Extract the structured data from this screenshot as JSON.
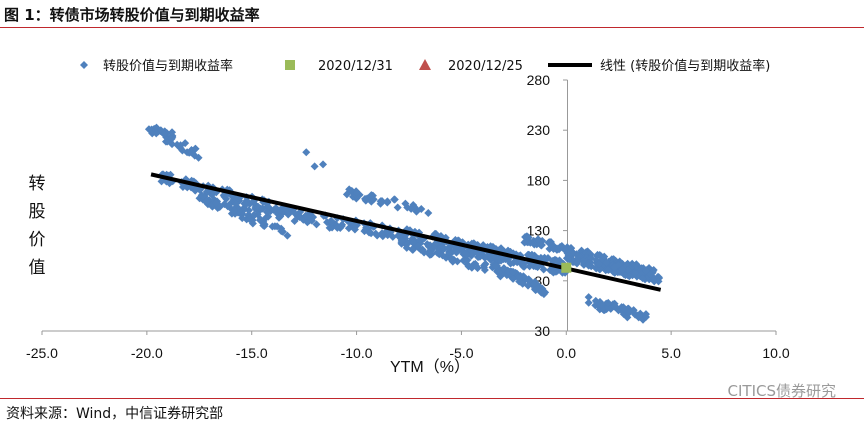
{
  "title": "图 1：转债市场转股价值与到期收益率",
  "source": "资料来源：Wind，中信证券研究部",
  "watermark": "CITICS债券研究",
  "colors": {
    "scatter": "#4f81bd",
    "point_2020_12_31": "#9bbb59",
    "point_2020_12_25": "#c0504d",
    "trend": "#000000",
    "rule": "#c0282d"
  },
  "chart_data": {
    "type": "scatter",
    "xlabel": "YTM（%）",
    "ylabel": "转股价值",
    "xlim": [
      -25,
      10
    ],
    "ylim": [
      30,
      280
    ],
    "x_ticks": [
      "-25.0",
      "-20.0",
      "-15.0",
      "-10.0",
      "-5.0",
      "0.0",
      "5.0",
      "10.0"
    ],
    "y_ticks": [
      "30",
      "80",
      "130",
      "180",
      "230",
      "280"
    ],
    "legend_position": "top",
    "legend": [
      {
        "label": "转股价值与到期收益率",
        "marker": "diamond"
      },
      {
        "label": "2020/12/31",
        "marker": "square"
      },
      {
        "label": "2020/12/25",
        "marker": "triangle"
      },
      {
        "label": "线性 (转股价值与到期收益率)",
        "marker": "line"
      }
    ],
    "series": [
      {
        "name": "转股价值与到期收益率",
        "bands": [
          {
            "x_from": -19.8,
            "x_to": -17.5,
            "y_from": 232,
            "y_to": 205,
            "spread": 5,
            "count": 40
          },
          {
            "x_from": -19.5,
            "x_to": -13.0,
            "y_from": 185,
            "y_to": 148,
            "spread": 5,
            "count": 90
          },
          {
            "x_from": -17.5,
            "x_to": -13.5,
            "y_from": 163,
            "y_to": 128,
            "spread": 4,
            "count": 60
          },
          {
            "x_from": -16.0,
            "x_to": -6.0,
            "y_from": 155,
            "y_to": 120,
            "spread": 6,
            "count": 140
          },
          {
            "x_from": -10.5,
            "x_to": -6.5,
            "y_from": 168,
            "y_to": 150,
            "spread": 4,
            "count": 35
          },
          {
            "x_from": -8.0,
            "x_to": -2.0,
            "y_from": 120,
            "y_to": 82,
            "spread": 5,
            "count": 90
          },
          {
            "x_from": -6.0,
            "x_to": 0.0,
            "y_from": 118,
            "y_to": 92,
            "spread": 7,
            "count": 180
          },
          {
            "x_from": -3.5,
            "x_to": -1.0,
            "y_from": 95,
            "y_to": 70,
            "spread": 4,
            "count": 40
          },
          {
            "x_from": -2.0,
            "x_to": 4.2,
            "y_from": 122,
            "y_to": 88,
            "spread": 4,
            "count": 110
          },
          {
            "x_from": 0.0,
            "x_to": 4.5,
            "y_from": 104,
            "y_to": 82,
            "spread": 5,
            "count": 130
          },
          {
            "x_from": 1.0,
            "x_to": 3.0,
            "y_from": 60,
            "y_to": 48,
            "spread": 5,
            "count": 35
          },
          {
            "x_from": 2.0,
            "x_to": 3.8,
            "y_from": 58,
            "y_to": 44,
            "spread": 4,
            "count": 20
          }
        ],
        "points": [
          {
            "x": -19.9,
            "y": 231
          },
          {
            "x": -18.8,
            "y": 228
          },
          {
            "x": -12.4,
            "y": 208
          },
          {
            "x": -12.0,
            "y": 194
          },
          {
            "x": -11.6,
            "y": 196
          },
          {
            "x": -13.3,
            "y": 125
          },
          {
            "x": -10.0,
            "y": 168
          },
          {
            "x": 2.0,
            "y": 58
          },
          {
            "x": 3.8,
            "y": 44
          }
        ]
      },
      {
        "name": "2020/12/31",
        "points": [
          {
            "x": 0.0,
            "y": 93
          }
        ]
      },
      {
        "name": "2020/12/25",
        "points": []
      },
      {
        "name": "线性 (转股价值与到期收益率)",
        "x": [
          -19.8,
          4.5
        ],
        "y": [
          186,
          71
        ]
      }
    ]
  }
}
